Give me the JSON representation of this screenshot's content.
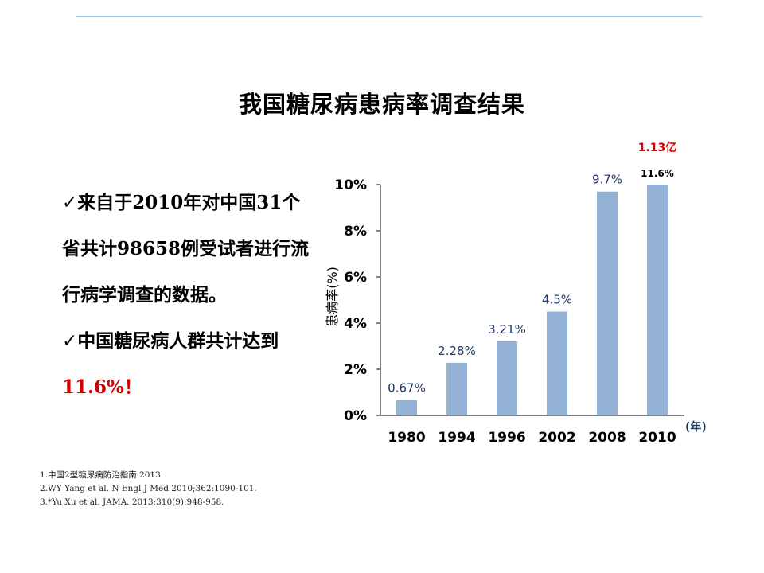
{
  "slide": {
    "title": "我国糖尿病患病率调查结果",
    "bullet1_check": "✓",
    "bullet1_text_a": "来自于",
    "bullet1_num_a": "2010",
    "bullet1_text_b": "年对中国",
    "bullet1_num_b": "31",
    "bullet1_text_c": "个省共计",
    "bullet1_num_c": "98658",
    "bullet1_text_d": "例受试者进行流行病学调查的数据。",
    "bullet2_check": "✓",
    "bullet2_text": "中国糖尿病人群共计达到",
    "bullet2_highlight": "11.6%！",
    "refs": [
      "1.中国2型糖尿病防治指南.2013",
      "2.WY Yang et al. N Engl J Med 2010;362:1090-101.",
      "3.*Yu Xu et al. JAMA. 2013;310(9):948-958."
    ]
  },
  "colors": {
    "bar": "#95b3d7",
    "label": "#1f3864",
    "highlight": "#d40000",
    "bullet_highlight": "#d40000",
    "rule": "#9dc3e6",
    "axis_unit": "#1f3864"
  },
  "chart_data": {
    "type": "bar",
    "categories": [
      "1980",
      "1994",
      "1996",
      "2002",
      "2008",
      "2010"
    ],
    "values": [
      0.67,
      2.28,
      3.21,
      4.5,
      9.7,
      11.6
    ],
    "data_labels": [
      "0.67%",
      "2.28%",
      "3.21%",
      "4.5%",
      "9.7%",
      "11.6%"
    ],
    "ylabel": "患病率(%)",
    "xunit": "(年)",
    "ylim": [
      0,
      10
    ],
    "yticks": [
      "0%",
      "2%",
      "4%",
      "6%",
      "8%",
      "10%"
    ],
    "ytick_values": [
      0,
      2,
      4,
      6,
      8,
      10
    ],
    "annotation": "1.13亿",
    "grid": false
  }
}
